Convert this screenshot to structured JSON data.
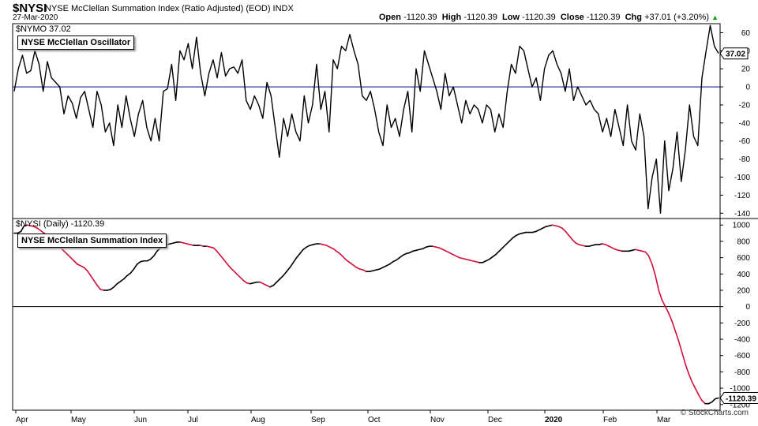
{
  "header": {
    "symbol": "$NYSI",
    "description": "NYSE McClellan Summation Index (Ratio Adjusted) (EOD)  INDX",
    "date": "27-Mar-2020",
    "open_label": "Open",
    "open": "-1120.39",
    "high_label": "High",
    "high": "-1120.39",
    "low_label": "Low",
    "low": "-1120.39",
    "close_label": "Close",
    "close": "-1120.39",
    "chg_label": "Chg",
    "chg": "+37.01 (+3.20%)",
    "chg_arrow": "▲"
  },
  "brand": "© StockCharts.com",
  "chart_data": [
    {
      "type": "line",
      "panel_id": "$NYMO",
      "header_text": "$NYMO 37.02",
      "legend": "NYSE McClellan Oscillator",
      "last_value_label": "37.02",
      "ylim": [
        -145,
        70
      ],
      "yticks": [
        60,
        40,
        20,
        0,
        -20,
        -40,
        -60,
        -80,
        -100,
        -120,
        -140
      ],
      "zero_line": 0,
      "colors": {
        "line": "#000000",
        "zero": "#000080"
      },
      "values": [
        -5,
        20,
        35,
        15,
        18,
        40,
        25,
        -5,
        28,
        10,
        5,
        0,
        -30,
        -10,
        -18,
        -35,
        -12,
        -5,
        -25,
        -45,
        -5,
        -20,
        -50,
        -40,
        -65,
        -20,
        -45,
        -10,
        -35,
        -55,
        -30,
        -15,
        -45,
        -60,
        -35,
        -60,
        -5,
        -2,
        25,
        -15,
        40,
        30,
        48,
        20,
        55,
        15,
        -10,
        15,
        30,
        10,
        38,
        12,
        20,
        22,
        15,
        30,
        -15,
        -25,
        -10,
        -20,
        -35,
        5,
        -10,
        -45,
        -78,
        -35,
        -55,
        -30,
        -50,
        -60,
        -10,
        -40,
        -20,
        25,
        -25,
        -5,
        -50,
        30,
        20,
        45,
        40,
        58,
        40,
        25,
        -10,
        -15,
        -5,
        -25,
        -50,
        -65,
        -20,
        -45,
        -35,
        -55,
        -25,
        -5,
        -50,
        20,
        -5,
        40,
        25,
        10,
        -5,
        -25,
        15,
        -10,
        0,
        -20,
        -40,
        -15,
        -30,
        -20,
        -25,
        -40,
        -20,
        -25,
        -50,
        -30,
        -45,
        -5,
        25,
        15,
        45,
        40,
        20,
        0,
        10,
        -15,
        20,
        35,
        40,
        25,
        15,
        -5,
        20,
        -15,
        0,
        -10,
        -20,
        -15,
        -25,
        -30,
        -50,
        -35,
        -55,
        -25,
        -45,
        -65,
        -20,
        -60,
        -70,
        -30,
        -55,
        -135,
        -100,
        -80,
        -140,
        -60,
        -115,
        -90,
        -50,
        -105,
        -70,
        -20,
        -55,
        -65,
        10,
        40,
        68,
        45,
        37.02
      ]
    },
    {
      "type": "line",
      "panel_id": "$NYSI",
      "header_text": "$NYSI (Daily) -1120.39",
      "legend": "NYSE McClellan Summation Index",
      "last_value_label": "-1120.39",
      "ylim": [
        -1270,
        1070
      ],
      "yticks": [
        1000,
        800,
        600,
        400,
        200,
        0,
        -200,
        -400,
        -600,
        -800,
        -1000,
        -1200
      ],
      "zero_line": 0,
      "colors": {
        "rising": "#000000",
        "falling": "#d0103a",
        "zero": "#000000"
      },
      "values": [
        900,
        900,
        920,
        990,
        1000,
        990,
        980,
        960,
        930,
        900,
        870,
        830,
        800,
        760,
        720,
        680,
        640,
        600,
        560,
        520,
        500,
        480,
        440,
        380,
        320,
        260,
        210,
        200,
        200,
        210,
        240,
        280,
        310,
        340,
        380,
        410,
        460,
        520,
        550,
        560,
        560,
        580,
        620,
        680,
        720,
        750,
        760,
        770,
        780,
        790,
        790,
        780,
        770,
        760,
        750,
        750,
        750,
        740,
        740,
        730,
        720,
        680,
        630,
        580,
        530,
        480,
        440,
        400,
        360,
        320,
        290,
        280,
        290,
        300,
        300,
        280,
        260,
        240,
        260,
        300,
        340,
        380,
        430,
        480,
        540,
        600,
        650,
        700,
        730,
        750,
        760,
        770,
        770,
        760,
        750,
        730,
        710,
        680,
        650,
        610,
        570,
        540,
        510,
        480,
        460,
        450,
        430,
        430,
        440,
        450,
        460,
        480,
        500,
        520,
        550,
        570,
        600,
        630,
        650,
        660,
        680,
        690,
        700,
        710,
        730,
        740,
        740,
        730,
        720,
        700,
        680,
        660,
        640,
        620,
        600,
        590,
        580,
        570,
        560,
        550,
        540,
        540,
        560,
        580,
        610,
        640,
        680,
        720,
        760,
        800,
        840,
        870,
        890,
        900,
        910,
        910,
        910,
        920,
        940,
        960,
        980,
        990,
        1000,
        990,
        980,
        960,
        920,
        870,
        820,
        780,
        760,
        750,
        740,
        740,
        750,
        760,
        760,
        770,
        760,
        740,
        720,
        700,
        690,
        680,
        680,
        680,
        690,
        700,
        690,
        680,
        670,
        620,
        520,
        380,
        200,
        80,
        0,
        -80,
        -180,
        -300,
        -420,
        -560,
        -700,
        -820,
        -920,
        -1000,
        -1080,
        -1150,
        -1190,
        -1190,
        -1170,
        -1130,
        -1120.39
      ]
    }
  ],
  "x_axis": {
    "labels": [
      "Apr",
      "May",
      "Jun",
      "Jul",
      "Aug",
      "Sep",
      "Oct",
      "Nov",
      "Dec",
      "2020",
      "Feb",
      "Mar"
    ]
  }
}
